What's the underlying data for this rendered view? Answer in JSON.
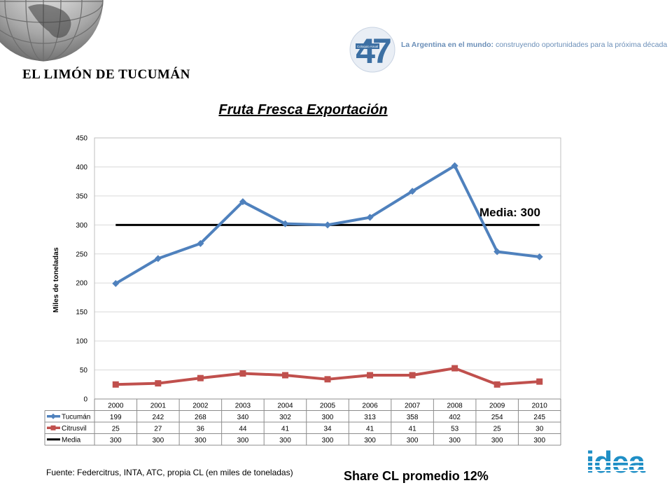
{
  "slide": {
    "title": "EL LIMÓN DE TUCUMÁN",
    "conference_logo_number": "47",
    "conference_logo_small": "Coloquio Anual",
    "conference_tag_bold": "La Argentina en el mundo:",
    "conference_tag_rest": " construyendo oportunidades para la próxima década",
    "source": "Fuente: Federcitrus, INTA, ATC, propia CL (en miles de toneladas)",
    "share": "Share CL promedio 12%",
    "brand": "idea"
  },
  "colors": {
    "tucuman": "#4f81bd",
    "citrusvil": "#c0504d",
    "media": "#000000",
    "grid": "#d9d9d9",
    "brand": "#1f8fc6",
    "tag": "#6b8fb8"
  },
  "chart_data": {
    "type": "line",
    "title": "Fruta Fresca Exportación",
    "ylabel": "Miles de toneladas",
    "xlabel": "",
    "ylim": [
      0,
      450
    ],
    "yticks": [
      0,
      50,
      100,
      150,
      200,
      250,
      300,
      350,
      400,
      450
    ],
    "grid": true,
    "categories": [
      "2000",
      "2001",
      "2002",
      "2003",
      "2004",
      "2005",
      "2006",
      "2007",
      "2008",
      "2009",
      "2010"
    ],
    "series": [
      {
        "name": "Tucumán",
        "marker": "diamond",
        "values": [
          199,
          242,
          268,
          340,
          302,
          300,
          313,
          358,
          402,
          254,
          245
        ]
      },
      {
        "name": "Citrusvil",
        "marker": "square",
        "values": [
          25,
          27,
          36,
          44,
          41,
          34,
          41,
          41,
          53,
          25,
          30
        ]
      },
      {
        "name": "Media",
        "marker": "none",
        "values": [
          300,
          300,
          300,
          300,
          300,
          300,
          300,
          300,
          300,
          300,
          300
        ]
      }
    ],
    "annotation": "Media: 300",
    "legend": "data-table"
  }
}
